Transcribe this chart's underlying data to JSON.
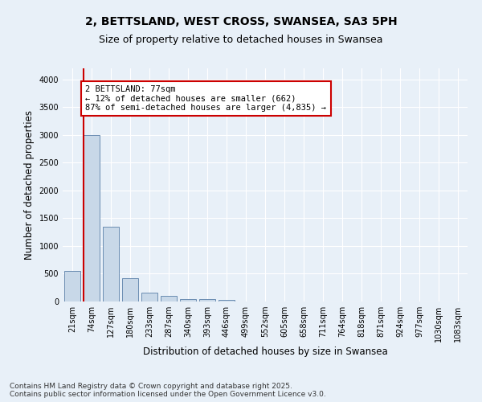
{
  "title_line1": "2, BETTSLAND, WEST CROSS, SWANSEA, SA3 5PH",
  "title_line2": "Size of property relative to detached houses in Swansea",
  "xlabel": "Distribution of detached houses by size in Swansea",
  "ylabel": "Number of detached properties",
  "bins": [
    "21sqm",
    "74sqm",
    "127sqm",
    "180sqm",
    "233sqm",
    "287sqm",
    "340sqm",
    "393sqm",
    "446sqm",
    "499sqm",
    "552sqm",
    "605sqm",
    "658sqm",
    "711sqm",
    "764sqm",
    "818sqm",
    "871sqm",
    "924sqm",
    "977sqm",
    "1030sqm",
    "1083sqm"
  ],
  "bar_heights": [
    550,
    3000,
    1350,
    420,
    160,
    100,
    50,
    40,
    25,
    5,
    2,
    0,
    0,
    0,
    0,
    0,
    0,
    0,
    0,
    0,
    0
  ],
  "bar_color": "#c8d8e8",
  "bar_edge_color": "#5a7fa8",
  "marker_line_color": "#cc0000",
  "annotation_text": "2 BETTSLAND: 77sqm\n← 12% of detached houses are smaller (662)\n87% of semi-detached houses are larger (4,835) →",
  "annotation_box_color": "#ffffff",
  "annotation_box_edge_color": "#cc0000",
  "ylim": [
    0,
    4200
  ],
  "yticks": [
    0,
    500,
    1000,
    1500,
    2000,
    2500,
    3000,
    3500,
    4000
  ],
  "bg_color": "#e8f0f8",
  "plot_bg_color": "#e8f0f8",
  "footer_text": "Contains HM Land Registry data © Crown copyright and database right 2025.\nContains public sector information licensed under the Open Government Licence v3.0.",
  "title_fontsize": 10,
  "subtitle_fontsize": 9,
  "tick_fontsize": 7,
  "label_fontsize": 8.5,
  "footer_fontsize": 6.5
}
